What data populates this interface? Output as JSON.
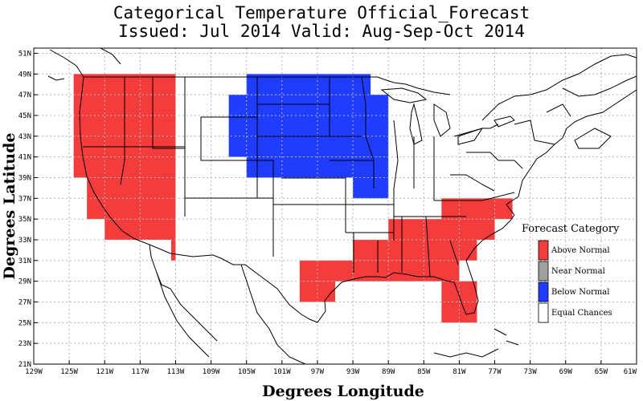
{
  "title": "Categorical Temperature Official_Forecast",
  "subtitle": "Issued: Jul 2014 Valid: Aug-Sep-Oct 2014",
  "xlabel": "Degrees Longitude",
  "ylabel": "Degrees Latitude",
  "xticks": [
    "129W",
    "125W",
    "121W",
    "117W",
    "113W",
    "109W",
    "105W",
    "101W",
    "97W",
    "93W",
    "89W",
    "85W",
    "81W",
    "77W",
    "73W",
    "69W",
    "65W",
    "61W"
  ],
  "yticks": [
    "51N",
    "49N",
    "47N",
    "45N",
    "43N",
    "41N",
    "39N",
    "37N",
    "35N",
    "33N",
    "31N",
    "29N",
    "27N",
    "25N",
    "23N",
    "21N"
  ],
  "colors": {
    "above": "#f43c3c",
    "near": "#a0a0a0",
    "below": "#1f3cff",
    "equal": "#ffffff",
    "grid": "#b4b4b4"
  },
  "legend": {
    "title": "Forecast Category",
    "items": [
      {
        "label": "Above Normal",
        "color": "#f43c3c"
      },
      {
        "label": "Near Normal",
        "color": "#a0a0a0"
      },
      {
        "label": "Below Normal",
        "color": "#1f3cff"
      },
      {
        "label": "Equal Chances",
        "color": "#ffffff"
      }
    ]
  },
  "regions": {
    "above": [
      {
        "lon": [
          -124.5,
          -113
        ],
        "lat": [
          39,
          49
        ]
      },
      {
        "lon": [
          -123,
          -113
        ],
        "lat": [
          35,
          39
        ]
      },
      {
        "lon": [
          -121,
          -113
        ],
        "lat": [
          33,
          35
        ]
      },
      {
        "lon": [
          -113.5,
          -113
        ],
        "lat": [
          31,
          33
        ]
      },
      {
        "lon": [
          -83,
          -75
        ],
        "lat": [
          35,
          37
        ]
      },
      {
        "lon": [
          -89,
          -77
        ],
        "lat": [
          33,
          35
        ]
      },
      {
        "lon": [
          -93,
          -79
        ],
        "lat": [
          31,
          33
        ]
      },
      {
        "lon": [
          -95,
          -81
        ],
        "lat": [
          29,
          31
        ]
      },
      {
        "lon": [
          -99,
          -81
        ],
        "lat": [
          29,
          31
        ]
      },
      {
        "lon": [
          -99,
          -95
        ],
        "lat": [
          27,
          29
        ]
      },
      {
        "lon": [
          -83,
          -79
        ],
        "lat": [
          25,
          29
        ]
      }
    ],
    "below": [
      {
        "lon": [
          -105,
          -91
        ],
        "lat": [
          47,
          49
        ]
      },
      {
        "lon": [
          -107,
          -89
        ],
        "lat": [
          41,
          47
        ]
      },
      {
        "lon": [
          -105,
          -89
        ],
        "lat": [
          39,
          41
        ]
      },
      {
        "lon": [
          -93,
          -89
        ],
        "lat": [
          37,
          39
        ]
      }
    ]
  }
}
